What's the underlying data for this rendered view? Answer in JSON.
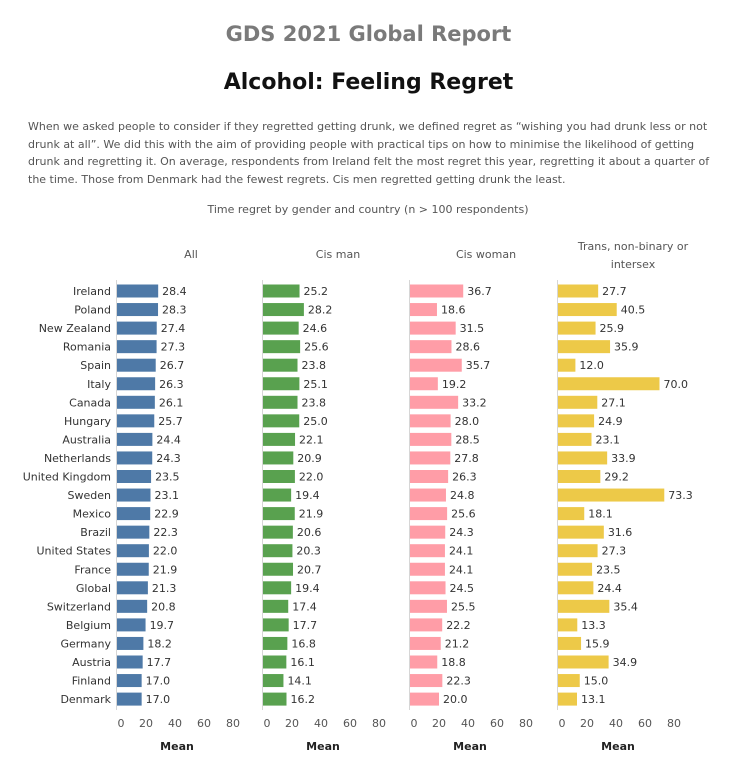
{
  "report_title": "GDS 2021 Global Report",
  "chart_title": "Alcohol: Feeling Regret",
  "description": "When we asked people to consider if they regretted getting drunk, we defined regret as “wishing you had drunk less or not drunk at all”. We did this with the aim of providing people with practical tips on how to minimise the likelihood of getting drunk and regretting it. On average, respondents from Ireland felt the most regret this year, regretting it about a quarter of the time. Those from Denmark had the fewest regrets. Cis men regretted getting drunk the least.",
  "chart_data": {
    "type": "bar",
    "title": "Time regret by gender and country (n > 100 respondents)",
    "orientation": "horizontal",
    "categories": [
      "Ireland",
      "Poland",
      "New Zealand",
      "Romania",
      "Spain",
      "Italy",
      "Canada",
      "Hungary",
      "Australia",
      "Netherlands",
      "United Kingdom",
      "Sweden",
      "Mexico",
      "Brazil",
      "United States",
      "France",
      "Global",
      "Switzerland",
      "Belgium",
      "Germany",
      "Austria",
      "Finland",
      "Denmark"
    ],
    "xlabel": "Mean",
    "xlim": [
      0,
      80
    ],
    "xticks": [
      0,
      20,
      40,
      60,
      80
    ],
    "series": [
      {
        "name": "All",
        "color": "#4e79a7",
        "values": [
          28.4,
          28.3,
          27.4,
          27.3,
          26.7,
          26.3,
          26.1,
          25.7,
          24.4,
          24.3,
          23.5,
          23.1,
          22.9,
          22.3,
          22.0,
          21.9,
          21.3,
          20.8,
          19.7,
          18.2,
          17.7,
          17.0,
          17.0
        ]
      },
      {
        "name": "Cis man",
        "color": "#59a14f",
        "values": [
          25.2,
          28.2,
          24.6,
          25.6,
          23.8,
          25.1,
          23.8,
          25.0,
          22.1,
          20.9,
          22.0,
          19.4,
          21.9,
          20.6,
          20.3,
          20.7,
          19.4,
          17.4,
          17.7,
          16.8,
          16.1,
          14.1,
          16.2
        ]
      },
      {
        "name": "Cis woman",
        "color": "#ff9da7",
        "values": [
          36.7,
          18.6,
          31.5,
          28.6,
          35.7,
          19.2,
          33.2,
          28.0,
          28.5,
          27.8,
          26.3,
          24.8,
          25.6,
          24.3,
          24.1,
          24.1,
          24.5,
          25.5,
          22.2,
          21.2,
          18.8,
          22.3,
          20.0
        ]
      },
      {
        "name": "Trans, non-binary or intersex",
        "color": "#edc948",
        "values": [
          27.7,
          40.5,
          25.9,
          35.9,
          12.0,
          70.0,
          27.1,
          24.9,
          23.1,
          33.9,
          29.2,
          73.3,
          18.1,
          31.6,
          27.3,
          23.5,
          24.4,
          35.4,
          13.3,
          15.9,
          34.9,
          15.0,
          13.1
        ]
      }
    ]
  }
}
